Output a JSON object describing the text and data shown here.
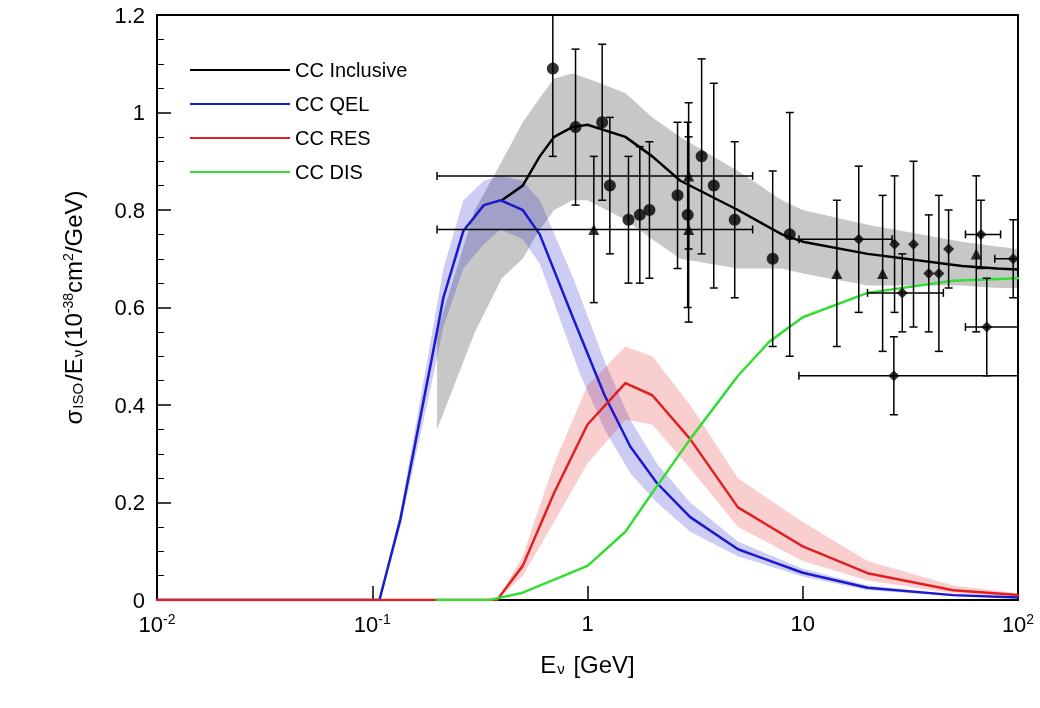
{
  "chart_data": {
    "type": "line",
    "xlabel": "E$_{ν}$ [GeV]",
    "ylabel": "σ$_{ISO}$/E$_{ν}$(10$^{-38}$cm$^{2}$/GeV)",
    "log": "x",
    "grid": false,
    "legend": "top left",
    "marker": "none",
    "line_style": "solid",
    "xlim": [
      0.01,
      100
    ],
    "xticks": [
      {
        "value": 0.01,
        "label": "10$^{-2}$"
      },
      {
        "value": 0.1,
        "label": "10$^{-1}$"
      },
      1,
      10,
      {
        "value": 100,
        "label": "10$^{2}$"
      }
    ],
    "ylim": [
      0,
      1.2
    ],
    "yticks": [
      0,
      0.2,
      0.4,
      0.6,
      0.8,
      1,
      1.2
    ],
    "series": [
      {
        "name": "CC Inclusive",
        "color": "#000000",
        "x": [
          0.2,
          0.3,
          0.4,
          0.5,
          0.6,
          0.7,
          0.85,
          1,
          1.5,
          2,
          2.7,
          5,
          8,
          10,
          20,
          55,
          80,
          100
        ],
        "values": [
          null,
          null,
          0.82,
          0.85,
          0.91,
          0.95,
          0.97,
          0.975,
          0.95,
          0.91,
          0.86,
          0.8,
          0.75,
          0.735,
          0.71,
          0.685,
          0.68,
          0.678
        ],
        "lower": [
          0.35,
          0.55,
          0.66,
          0.7,
          0.76,
          0.8,
          0.82,
          0.82,
          0.78,
          0.74,
          0.7,
          0.68,
          0.68,
          0.67,
          0.645,
          0.645,
          0.64,
          0.64
        ],
        "upper": [
          0.55,
          0.8,
          0.9,
          0.98,
          1.03,
          1.07,
          1.08,
          1.07,
          1.04,
          0.99,
          0.95,
          0.88,
          0.82,
          0.8,
          0.77,
          0.735,
          0.725,
          0.72
        ]
      },
      {
        "name": "CC QEL",
        "color": "#1a1acc",
        "x": [
          0.01,
          0.108,
          0.135,
          0.19,
          0.214,
          0.265,
          0.33,
          0.395,
          0.5,
          0.6,
          0.86,
          0.93,
          1.2,
          1.58,
          2.1,
          3,
          5,
          10,
          20,
          50,
          100
        ],
        "values": [
          0,
          0,
          0.165,
          0.5,
          0.62,
          0.757,
          0.81,
          0.82,
          0.8,
          0.75,
          0.577,
          0.54,
          0.42,
          0.315,
          0.24,
          0.17,
          0.104,
          0.056,
          0.025,
          0.01,
          0.005
        ],
        "lower": [
          0,
          0,
          0.15,
          0.45,
          0.56,
          0.68,
          0.73,
          0.76,
          0.74,
          0.69,
          0.5,
          0.46,
          0.35,
          0.26,
          0.2,
          0.14,
          0.09,
          0.048,
          0.02,
          0.008,
          0.004
        ],
        "upper": [
          0,
          0,
          0.18,
          0.55,
          0.68,
          0.82,
          0.86,
          0.87,
          0.86,
          0.82,
          0.66,
          0.62,
          0.49,
          0.37,
          0.28,
          0.2,
          0.12,
          0.064,
          0.03,
          0.012,
          0.006
        ]
      },
      {
        "name": "CC RES",
        "color": "#e02020",
        "x": [
          0.01,
          0.38,
          0.5,
          0.7,
          1,
          1.5,
          2,
          3,
          5,
          10,
          20,
          50,
          100
        ],
        "values": [
          0,
          0,
          0.07,
          0.22,
          0.36,
          0.445,
          0.42,
          0.33,
          0.19,
          0.11,
          0.055,
          0.02,
          0.01
        ],
        "lower": [
          0,
          0,
          0.05,
          0.16,
          0.28,
          0.37,
          0.36,
          0.27,
          0.15,
          0.08,
          0.04,
          0.014,
          0.006
        ],
        "upper": [
          0,
          0,
          0.09,
          0.28,
          0.44,
          0.52,
          0.5,
          0.4,
          0.25,
          0.16,
          0.08,
          0.03,
          0.014
        ]
      },
      {
        "name": "CC DIS",
        "color": "#33dd33",
        "x": [
          0.2,
          0.35,
          0.5,
          1,
          1.5,
          2,
          3,
          5,
          7,
          10,
          20,
          50,
          100
        ],
        "values": [
          0,
          0,
          0.015,
          0.07,
          0.14,
          0.22,
          0.33,
          0.46,
          0.53,
          0.58,
          0.63,
          0.655,
          0.66
        ]
      },
      {
        "type": "scatter",
        "marker": "circle",
        "color": "#000000",
        "x": [
          0.69,
          0.88,
          1.17,
          1.27,
          1.55,
          1.75,
          1.94,
          2.62,
          2.92,
          3.39,
          3.86,
          4.83,
          7.25,
          8.7
        ],
        "values": [
          1.09,
          0.97,
          0.98,
          0.85,
          0.78,
          0.79,
          0.8,
          0.83,
          0.79,
          0.91,
          0.85,
          0.78,
          0.7,
          0.75
        ],
        "errors": [
          [
            0.91,
            1.2
          ],
          0.16,
          0.16,
          0.14,
          0.13,
          0.14,
          0.14,
          0.15,
          0.19,
          0.2,
          0.21,
          0.16,
          0.18,
          0.25
        ]
      },
      {
        "type": "scatter",
        "marker": "triangle",
        "color": "#000000",
        "x": [
          1.07,
          2.95,
          2.95,
          14.4,
          23.5,
          64
        ],
        "values": [
          0.76,
          0.87,
          0.76,
          0.67,
          0.67,
          0.71
        ],
        "errors": [
          0.15,
          0.15,
          0.19,
          0.15,
          0.16,
          0.16
        ],
        "xerrors": [
          [
            0.2,
            5.85
          ],
          [
            0.2,
            5.85
          ],
          null,
          null,
          null,
          null
        ]
      },
      {
        "type": "scatter",
        "marker": "diamond",
        "color": "#000000",
        "x": [
          18.2,
          26.5,
          26.7,
          29,
          32.7,
          38.5,
          42.9,
          47.6,
          67.3,
          71.6,
          95
        ],
        "values": [
          0.74,
          0.46,
          0.73,
          0.63,
          0.73,
          0.67,
          0.67,
          0.72,
          0.75,
          0.56,
          0.7
        ],
        "errors": [
          0.15,
          0.08,
          0.14,
          0.08,
          0.17,
          0.12,
          0.16,
          0.08,
          0.07,
          0.1,
          0.08
        ],
        "xerrors": [
          [
            9.6,
            26
          ],
          [
            9.6,
            100
          ],
          null,
          [
            20,
            45
          ],
          null,
          null,
          null,
          null,
          [
            57,
            83
          ],
          [
            57,
            100
          ],
          [
            78,
            100
          ]
        ]
      }
    ]
  }
}
